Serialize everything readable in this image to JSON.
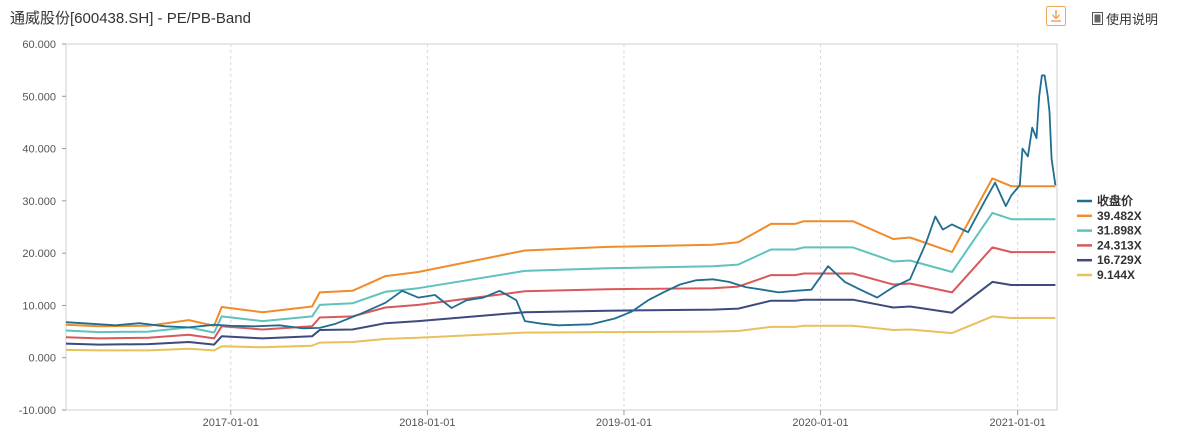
{
  "header": {
    "title": "通威股份[600438.SH] - PE/PB-Band",
    "manual_label": "使用说明",
    "download_icon": "download-icon",
    "manual_icon": "document-icon"
  },
  "chart_data": {
    "type": "line",
    "title": "",
    "xlabel": "",
    "ylabel": "",
    "ylim": [
      -10,
      60
    ],
    "xlim": [
      "2016-03-01",
      "2021-03-15"
    ],
    "y_ticks": [
      "60.000",
      "50.000",
      "40.000",
      "30.000",
      "20.000",
      "10.000",
      "0.000",
      "-10.000"
    ],
    "y_tick_values": [
      60,
      50,
      40,
      30,
      20,
      10,
      0,
      -10
    ],
    "x_ticks": [
      "2017-01-01",
      "2018-01-01",
      "2019-01-01",
      "2020-01-01",
      "2021-01-01"
    ],
    "grid": "vertical-dashed",
    "legend_position": "right",
    "series": [
      {
        "name": "收盘价",
        "color": "#1f6e91",
        "points": [
          [
            "2016-03-01",
            6.8
          ],
          [
            "2016-04-15",
            6.5
          ],
          [
            "2016-06-01",
            6.2
          ],
          [
            "2016-07-15",
            6.6
          ],
          [
            "2016-09-01",
            6.0
          ],
          [
            "2016-10-15",
            5.8
          ],
          [
            "2016-12-01",
            6.3
          ],
          [
            "2017-01-01",
            6.1
          ],
          [
            "2017-02-15",
            6.0
          ],
          [
            "2017-04-01",
            6.2
          ],
          [
            "2017-05-15",
            5.6
          ],
          [
            "2017-06-15",
            5.7
          ],
          [
            "2017-07-15",
            6.5
          ],
          [
            "2017-09-01",
            8.5
          ],
          [
            "2017-10-15",
            10.5
          ],
          [
            "2017-11-15",
            12.8
          ],
          [
            "2017-12-15",
            11.5
          ],
          [
            "2018-01-15",
            12.0
          ],
          [
            "2018-02-15",
            9.5
          ],
          [
            "2018-03-15",
            11.0
          ],
          [
            "2018-04-15",
            11.5
          ],
          [
            "2018-05-15",
            12.8
          ],
          [
            "2018-06-15",
            11.0
          ],
          [
            "2018-07-01",
            7.0
          ],
          [
            "2018-08-01",
            6.5
          ],
          [
            "2018-09-01",
            6.2
          ],
          [
            "2018-10-01",
            6.3
          ],
          [
            "2018-11-01",
            6.4
          ],
          [
            "2018-12-15",
            7.5
          ],
          [
            "2019-01-15",
            8.8
          ],
          [
            "2019-02-15",
            11.0
          ],
          [
            "2019-03-15",
            12.5
          ],
          [
            "2019-04-15",
            14.0
          ],
          [
            "2019-05-15",
            14.8
          ],
          [
            "2019-06-15",
            15.0
          ],
          [
            "2019-07-15",
            14.5
          ],
          [
            "2019-08-15",
            13.5
          ],
          [
            "2019-09-15",
            13.0
          ],
          [
            "2019-10-15",
            12.5
          ],
          [
            "2019-11-15",
            12.8
          ],
          [
            "2019-12-15",
            13.0
          ],
          [
            "2020-01-15",
            17.5
          ],
          [
            "2020-02-15",
            14.5
          ],
          [
            "2020-03-15",
            13.0
          ],
          [
            "2020-04-15",
            11.5
          ],
          [
            "2020-05-15",
            13.5
          ],
          [
            "2020-06-15",
            15.0
          ],
          [
            "2020-07-15",
            22.0
          ],
          [
            "2020-08-01",
            27.0
          ],
          [
            "2020-08-15",
            24.5
          ],
          [
            "2020-09-01",
            25.5
          ],
          [
            "2020-10-01",
            24.0
          ],
          [
            "2020-11-01",
            30.0
          ],
          [
            "2020-11-20",
            33.5
          ],
          [
            "2020-12-10",
            29.0
          ],
          [
            "2020-12-20",
            31.0
          ],
          [
            "2021-01-05",
            33.0
          ],
          [
            "2021-01-10",
            40.0
          ],
          [
            "2021-01-20",
            38.5
          ],
          [
            "2021-01-28",
            44.0
          ],
          [
            "2021-02-05",
            42.0
          ],
          [
            "2021-02-10",
            50.0
          ],
          [
            "2021-02-15",
            54.0
          ],
          [
            "2021-02-20",
            54.0
          ],
          [
            "2021-02-26",
            50.0
          ],
          [
            "2021-03-01",
            47.0
          ],
          [
            "2021-03-05",
            38.0
          ],
          [
            "2021-03-12",
            33.0
          ]
        ]
      },
      {
        "name": "39.482X",
        "color": "#f08c2b",
        "points": [
          [
            "2016-03-01",
            6.3
          ],
          [
            "2016-05-01",
            6.0
          ],
          [
            "2016-08-01",
            6.1
          ],
          [
            "2016-10-15",
            7.2
          ],
          [
            "2016-12-01",
            6.1
          ],
          [
            "2016-12-15",
            9.7
          ],
          [
            "2017-03-01",
            8.7
          ],
          [
            "2017-06-01",
            9.8
          ],
          [
            "2017-06-15",
            12.5
          ],
          [
            "2017-08-15",
            12.8
          ],
          [
            "2017-10-15",
            15.6
          ],
          [
            "2017-12-15",
            16.4
          ],
          [
            "2018-07-01",
            20.5
          ],
          [
            "2018-12-01",
            21.2
          ],
          [
            "2019-06-15",
            21.6
          ],
          [
            "2019-08-01",
            22.1
          ],
          [
            "2019-10-01",
            25.6
          ],
          [
            "2019-11-15",
            25.6
          ],
          [
            "2019-12-01",
            26.1
          ],
          [
            "2020-03-01",
            26.1
          ],
          [
            "2020-05-15",
            22.7
          ],
          [
            "2020-06-15",
            23.0
          ],
          [
            "2020-09-01",
            20.2
          ],
          [
            "2020-11-15",
            34.3
          ],
          [
            "2020-12-20",
            32.8
          ],
          [
            "2021-03-12",
            32.8
          ]
        ]
      },
      {
        "name": "31.898X",
        "color": "#5fc2bd",
        "points": [
          [
            "2016-03-01",
            5.2
          ],
          [
            "2016-05-01",
            4.9
          ],
          [
            "2016-08-01",
            5.0
          ],
          [
            "2016-10-15",
            5.8
          ],
          [
            "2016-12-01",
            4.8
          ],
          [
            "2016-12-15",
            7.9
          ],
          [
            "2017-03-01",
            7.0
          ],
          [
            "2017-06-01",
            7.9
          ],
          [
            "2017-06-15",
            10.1
          ],
          [
            "2017-08-15",
            10.4
          ],
          [
            "2017-10-15",
            12.6
          ],
          [
            "2017-12-15",
            13.3
          ],
          [
            "2018-07-01",
            16.6
          ],
          [
            "2018-12-01",
            17.1
          ],
          [
            "2019-06-15",
            17.5
          ],
          [
            "2019-08-01",
            17.8
          ],
          [
            "2019-10-01",
            20.7
          ],
          [
            "2019-11-15",
            20.7
          ],
          [
            "2019-12-01",
            21.1
          ],
          [
            "2020-03-01",
            21.1
          ],
          [
            "2020-05-15",
            18.4
          ],
          [
            "2020-06-15",
            18.6
          ],
          [
            "2020-09-01",
            16.4
          ],
          [
            "2020-11-15",
            27.7
          ],
          [
            "2020-12-20",
            26.5
          ],
          [
            "2021-03-12",
            26.5
          ]
        ]
      },
      {
        "name": "24.313X",
        "color": "#d9585b",
        "points": [
          [
            "2016-03-01",
            3.9
          ],
          [
            "2016-05-01",
            3.7
          ],
          [
            "2016-08-01",
            3.8
          ],
          [
            "2016-10-15",
            4.4
          ],
          [
            "2016-12-01",
            3.7
          ],
          [
            "2016-12-15",
            6.0
          ],
          [
            "2017-03-01",
            5.4
          ],
          [
            "2017-06-01",
            6.0
          ],
          [
            "2017-06-15",
            7.7
          ],
          [
            "2017-08-15",
            7.9
          ],
          [
            "2017-10-15",
            9.6
          ],
          [
            "2017-12-15",
            10.1
          ],
          [
            "2018-07-01",
            12.7
          ],
          [
            "2018-12-01",
            13.1
          ],
          [
            "2019-06-15",
            13.3
          ],
          [
            "2019-08-01",
            13.6
          ],
          [
            "2019-10-01",
            15.8
          ],
          [
            "2019-11-15",
            15.8
          ],
          [
            "2019-12-01",
            16.1
          ],
          [
            "2020-03-01",
            16.1
          ],
          [
            "2020-05-15",
            14.0
          ],
          [
            "2020-06-15",
            14.2
          ],
          [
            "2020-09-01",
            12.5
          ],
          [
            "2020-11-15",
            21.1
          ],
          [
            "2020-12-20",
            20.2
          ],
          [
            "2021-03-12",
            20.2
          ]
        ]
      },
      {
        "name": "16.729X",
        "color": "#3c4a7e",
        "points": [
          [
            "2016-03-01",
            2.7
          ],
          [
            "2016-05-01",
            2.5
          ],
          [
            "2016-08-01",
            2.6
          ],
          [
            "2016-10-15",
            3.0
          ],
          [
            "2016-12-01",
            2.5
          ],
          [
            "2016-12-15",
            4.1
          ],
          [
            "2017-03-01",
            3.7
          ],
          [
            "2017-06-01",
            4.1
          ],
          [
            "2017-06-15",
            5.3
          ],
          [
            "2017-08-15",
            5.4
          ],
          [
            "2017-10-15",
            6.6
          ],
          [
            "2017-12-15",
            7.0
          ],
          [
            "2018-07-01",
            8.7
          ],
          [
            "2018-12-01",
            9.0
          ],
          [
            "2019-06-15",
            9.2
          ],
          [
            "2019-08-01",
            9.4
          ],
          [
            "2019-10-01",
            10.9
          ],
          [
            "2019-11-15",
            10.9
          ],
          [
            "2019-12-01",
            11.1
          ],
          [
            "2020-03-01",
            11.1
          ],
          [
            "2020-05-15",
            9.6
          ],
          [
            "2020-06-15",
            9.8
          ],
          [
            "2020-09-01",
            8.6
          ],
          [
            "2020-11-15",
            14.5
          ],
          [
            "2020-12-20",
            13.9
          ],
          [
            "2021-03-12",
            13.9
          ]
        ]
      },
      {
        "name": "9.144X",
        "color": "#e8c15a",
        "points": [
          [
            "2016-03-01",
            1.5
          ],
          [
            "2016-05-01",
            1.4
          ],
          [
            "2016-08-01",
            1.4
          ],
          [
            "2016-10-15",
            1.7
          ],
          [
            "2016-12-01",
            1.4
          ],
          [
            "2016-12-15",
            2.2
          ],
          [
            "2017-03-01",
            2.0
          ],
          [
            "2017-06-01",
            2.3
          ],
          [
            "2017-06-15",
            2.9
          ],
          [
            "2017-08-15",
            3.0
          ],
          [
            "2017-10-15",
            3.6
          ],
          [
            "2017-12-15",
            3.8
          ],
          [
            "2018-07-01",
            4.8
          ],
          [
            "2018-12-01",
            4.9
          ],
          [
            "2019-06-15",
            5.0
          ],
          [
            "2019-08-01",
            5.1
          ],
          [
            "2019-10-01",
            5.9
          ],
          [
            "2019-11-15",
            5.9
          ],
          [
            "2019-12-01",
            6.1
          ],
          [
            "2020-03-01",
            6.1
          ],
          [
            "2020-05-15",
            5.3
          ],
          [
            "2020-06-15",
            5.4
          ],
          [
            "2020-09-01",
            4.7
          ],
          [
            "2020-11-15",
            7.9
          ],
          [
            "2020-12-20",
            7.6
          ],
          [
            "2021-03-12",
            7.6
          ]
        ]
      }
    ]
  }
}
